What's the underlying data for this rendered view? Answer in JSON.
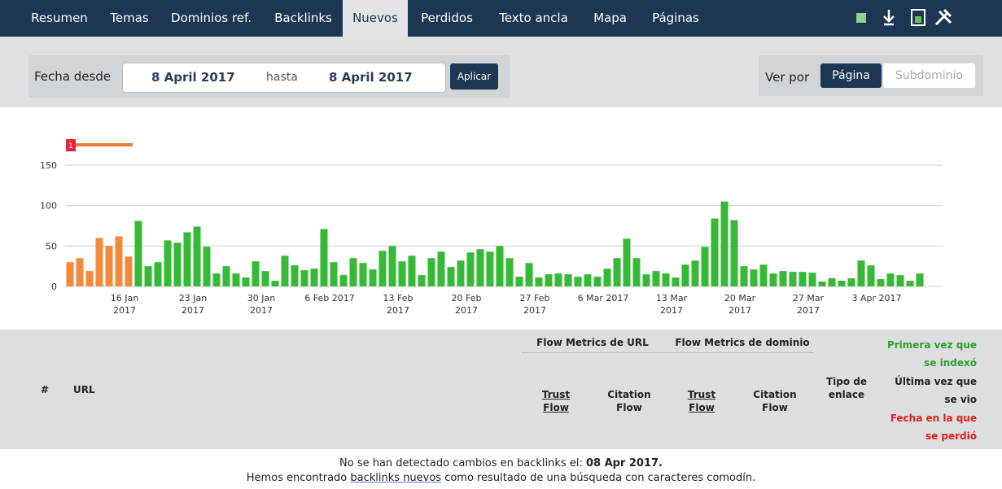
{
  "nav": {
    "tabs": [
      "Resumen",
      "Temas",
      "Dominios ref.",
      "Backlinks",
      "Nuevos",
      "Perdidos",
      "Texto ancla",
      "Mapa",
      "Páginas"
    ],
    "active": 4
  },
  "filter": {
    "from_label": "Fecha desde",
    "from": "8 April 2017",
    "to_label": "hasta",
    "to": "8 April 2017",
    "apply": "Aplicar",
    "view_label": "Ver por",
    "view_options": [
      "Página",
      "Subdominio"
    ],
    "view_active": 0
  },
  "chart_data": {
    "type": "bar",
    "annotation": "1",
    "categories": [
      null,
      null,
      null,
      null,
      null,
      null,
      "16 Jan\n2017",
      null,
      null,
      null,
      null,
      null,
      null,
      "23 Jan\n2017",
      null,
      null,
      null,
      null,
      null,
      null,
      "30 Jan\n2017",
      null,
      null,
      null,
      null,
      null,
      null,
      "6 Feb 2017",
      null,
      null,
      null,
      null,
      null,
      null,
      "13 Feb\n2017",
      null,
      null,
      null,
      null,
      null,
      null,
      "20 Feb\n2017",
      null,
      null,
      null,
      null,
      null,
      null,
      "27 Feb\n2017",
      null,
      null,
      null,
      null,
      null,
      null,
      "6 Mar 2017",
      null,
      null,
      null,
      null,
      null,
      null,
      "13 Mar\n2017",
      null,
      null,
      null,
      null,
      null,
      null,
      "20 Mar\n2017",
      null,
      null,
      null,
      null,
      null,
      null,
      "27 Mar\n2017",
      null,
      null,
      null,
      null,
      null,
      null,
      "3 Apr 2017",
      null,
      null,
      null,
      null
    ],
    "values": [
      30,
      35,
      19,
      60,
      50,
      62,
      37,
      81,
      25,
      30,
      57,
      54,
      67,
      74,
      49,
      16,
      25,
      16,
      11,
      31,
      19,
      7,
      38,
      26,
      20,
      22,
      71,
      30,
      14,
      35,
      29,
      21,
      44,
      50,
      31,
      38,
      14,
      35,
      43,
      24,
      32,
      42,
      46,
      43,
      50,
      35,
      12,
      29,
      11,
      15,
      16,
      15,
      12,
      15,
      12,
      22,
      35,
      59,
      35,
      15,
      19,
      16,
      11,
      27,
      32,
      49,
      84,
      105,
      82,
      25,
      21,
      27,
      16,
      19,
      18,
      18,
      17,
      6,
      10,
      7,
      10,
      32,
      26,
      9,
      16,
      14,
      7,
      16
    ],
    "colors": [
      "#f28a3e",
      "#f28a3e",
      "#f28a3e",
      "#f28a3e",
      "#f28a3e",
      "#f28a3e",
      "#f28a3e",
      "#36b936",
      "#36b936",
      "#36b936",
      "#36b936",
      "#36b936",
      "#36b936",
      "#36b936",
      "#36b936",
      "#36b936",
      "#36b936",
      "#36b936",
      "#36b936",
      "#36b936",
      "#36b936",
      "#36b936",
      "#36b936",
      "#36b936",
      "#36b936",
      "#36b936",
      "#36b936",
      "#36b936",
      "#36b936",
      "#36b936",
      "#36b936",
      "#36b936",
      "#36b936",
      "#36b936",
      "#36b936",
      "#36b936",
      "#36b936",
      "#36b936",
      "#36b936",
      "#36b936",
      "#36b936",
      "#36b936",
      "#36b936",
      "#36b936",
      "#36b936",
      "#36b936",
      "#36b936",
      "#36b936",
      "#36b936",
      "#36b936",
      "#36b936",
      "#36b936",
      "#36b936",
      "#36b936",
      "#36b936",
      "#36b936",
      "#36b936",
      "#36b936",
      "#36b936",
      "#36b936",
      "#36b936",
      "#36b936",
      "#36b936",
      "#36b936",
      "#36b936",
      "#36b936",
      "#36b936",
      "#36b936",
      "#36b936",
      "#36b936",
      "#36b936",
      "#36b936",
      "#36b936",
      "#36b936",
      "#36b936",
      "#36b936",
      "#36b936",
      "#36b936",
      "#36b936",
      "#36b936",
      "#36b936",
      "#36b936",
      "#36b936",
      "#36b936",
      "#36b936",
      "#36b936",
      "#36b936",
      "#36b936"
    ],
    "ylim": [
      0,
      150
    ],
    "yticks": [
      0,
      50,
      100,
      150
    ],
    "grid": true
  },
  "table": {
    "hash": "#",
    "url": "URL",
    "groups": [
      "Flow Metrics de URL",
      "Flow Metrics de dominio"
    ],
    "metrics": [
      "Trust\nFlow",
      "Citation\nFlow",
      "Trust\nFlow",
      "Citation\nFlow"
    ],
    "link_type": "Tipo de\nenlace",
    "dates": [
      "Primera vez que\nse indexó",
      "Última vez que\nse vio",
      "Fecha en la que\nse perdió"
    ]
  },
  "message": {
    "line1": "No se han detectado cambios en backlinks el: ",
    "date": "08 Apr 2017.",
    "line2_pre": "Hemos encontrado ",
    "link": "backlinks nuevos",
    "line2_post": " como resultado de una búsqueda con caracteres comodín."
  }
}
